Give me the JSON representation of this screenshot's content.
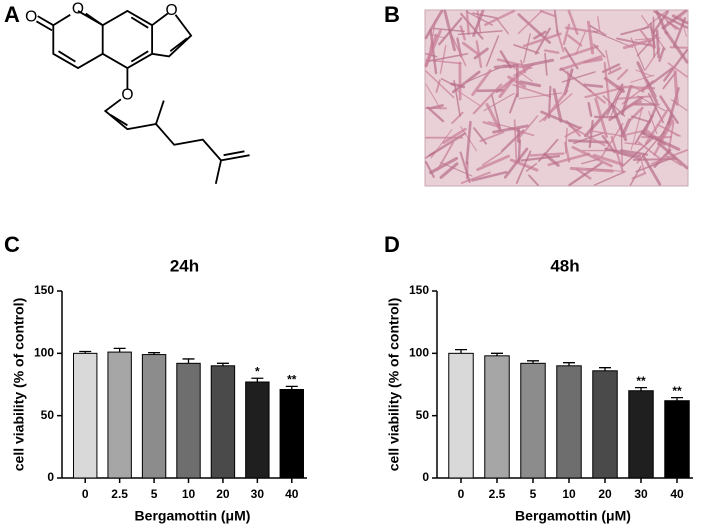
{
  "panel_labels": [
    "A",
    "B",
    "C",
    "D"
  ],
  "structure_atoms": [
    "O",
    "O",
    "O",
    "O"
  ],
  "chart_data": [
    {
      "type": "bar",
      "title": "24h",
      "x_label": "Bergamottin (μM)",
      "y_label": "cell viability (% of control)",
      "categories": [
        "0",
        "2.5",
        "5",
        "10",
        "20",
        "30",
        "40"
      ],
      "values": [
        100,
        101,
        99,
        92,
        90,
        77,
        71
      ],
      "errors": [
        1.5,
        3,
        1.5,
        3.5,
        2,
        3,
        2.5
      ],
      "annotations": [
        null,
        null,
        null,
        null,
        null,
        "*",
        "**"
      ],
      "colors": [
        "#d9d9d9",
        "#a6a6a6",
        "#8c8c8c",
        "#6e6e6e",
        "#4a4a4a",
        "#1f1f1f",
        "#000000"
      ],
      "ylim": [
        0,
        150
      ],
      "yticks": [
        0,
        50,
        100,
        150
      ]
    },
    {
      "type": "bar",
      "title": "48h",
      "x_label": "Bergamottin (μM)",
      "y_label": "cell viability (% of control)",
      "categories": [
        "0",
        "2.5",
        "5",
        "10",
        "20",
        "30",
        "40"
      ],
      "values": [
        100,
        98,
        92,
        90,
        86,
        70,
        62
      ],
      "errors": [
        3,
        2,
        2,
        2.5,
        2.5,
        2.5,
        2.5
      ],
      "annotations": [
        null,
        null,
        null,
        null,
        null,
        "**",
        "**"
      ],
      "colors": [
        "#d9d9d9",
        "#a6a6a6",
        "#8c8c8c",
        "#6e6e6e",
        "#4a4a4a",
        "#1f1f1f",
        "#000000"
      ],
      "ylim": [
        0,
        150
      ],
      "yticks": [
        0,
        50,
        100,
        150
      ]
    }
  ]
}
